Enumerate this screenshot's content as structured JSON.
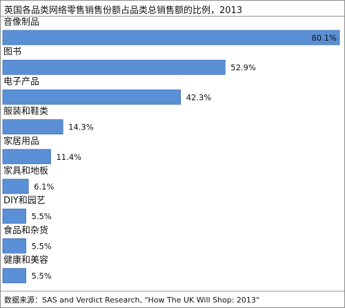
{
  "chart_data": {
    "type": "bar",
    "orientation": "horizontal",
    "title": "英国各品类网络零售销售份额占品类总销售额的比例，2013",
    "categories": [
      "音像制品",
      "图书",
      "电子产品",
      "服装和鞋类",
      "家居用品",
      "家具和地板",
      "DIY和园艺",
      "食品和杂货",
      "健康和美容"
    ],
    "values": [
      80.1,
      52.9,
      42.3,
      14.3,
      11.4,
      6.1,
      5.5,
      5.5,
      5.5
    ],
    "value_labels": [
      "80.1%",
      "52.9%",
      "42.3%",
      "14.3%",
      "11.4%",
      "6.1%",
      "5.5%",
      "5.5%",
      "5.5%"
    ],
    "xlim": [
      0,
      80.1
    ],
    "unit": "%",
    "bar_color": "#5b8fd6",
    "bar_edge_color": "#3f6fb3",
    "legend": "none",
    "grid": false
  },
  "source": "数据来源：SAS and Verdict Research, \"How The UK Will Shop: 2013\""
}
